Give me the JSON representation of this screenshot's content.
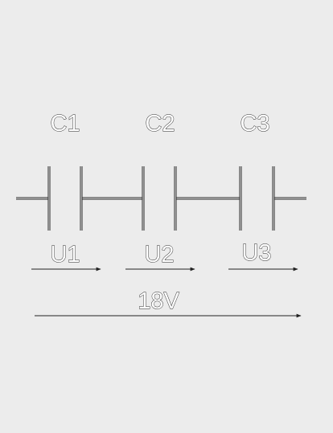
{
  "colors": {
    "background": "#ececec",
    "stroke": "#222222",
    "inner": "#ffffff"
  },
  "capacitors": [
    {
      "label": "C1"
    },
    {
      "label": "C2"
    },
    {
      "label": "C3"
    }
  ],
  "voltages": [
    {
      "label": "U1"
    },
    {
      "label": "U2"
    },
    {
      "label": "U3"
    }
  ],
  "total_voltage": {
    "label": "18V"
  }
}
